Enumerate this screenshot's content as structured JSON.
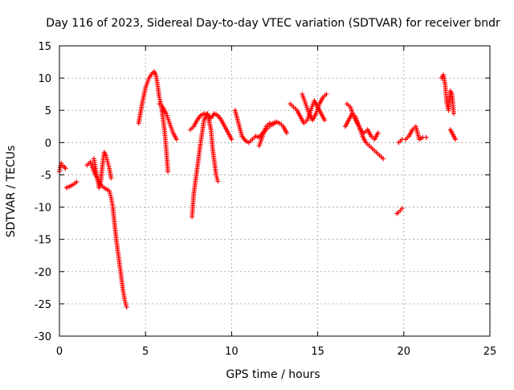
{
  "chart_data": {
    "type": "scatter",
    "title": "Day 116 of 2023, Sidereal Day-to-day VTEC variation (SDTVAR) for receiver bndr",
    "xlabel": "GPS time / hours",
    "ylabel": "SDTVAR / TECUs",
    "xlim": [
      0,
      25
    ],
    "ylim": [
      -30,
      15
    ],
    "xticks": [
      0,
      5,
      10,
      15,
      20,
      25
    ],
    "yticks": [
      15,
      10,
      5,
      0,
      -5,
      -10,
      -15,
      -20,
      -25,
      -30
    ],
    "grid": true,
    "marker": "+",
    "color": "#ff0000",
    "series": [
      {
        "name": "seg1",
        "x": [
          0.0,
          0.1,
          0.2,
          0.3,
          0.35
        ],
        "y": [
          -4.5,
          -3.2,
          -3.6,
          -3.8,
          -4.0
        ]
      },
      {
        "name": "seg2",
        "x": [
          0.4,
          0.6,
          0.8,
          1.0
        ],
        "y": [
          -7.0,
          -6.8,
          -6.5,
          -6.1
        ]
      },
      {
        "name": "seg3",
        "x": [
          1.6,
          1.8,
          2.0,
          2.2,
          2.4,
          2.5,
          2.6,
          2.7,
          2.8,
          2.9,
          3.0,
          3.1,
          3.2,
          3.3,
          3.4,
          3.5,
          3.6,
          3.7,
          3.8,
          3.9
        ],
        "y": [
          -3.5,
          -3.0,
          -4.5,
          -5.5,
          -6.5,
          -6.8,
          -7.0,
          -7.2,
          -7.3,
          -7.5,
          -8.5,
          -10.0,
          -12.5,
          -15.0,
          -17.0,
          -19.0,
          -21.0,
          -23.0,
          -24.5,
          -25.5
        ]
      },
      {
        "name": "seg4",
        "x": [
          2.0,
          2.1,
          2.2,
          2.3,
          2.4,
          2.5,
          2.6,
          2.7,
          2.8,
          2.9,
          3.0
        ],
        "y": [
          -2.5,
          -4.0,
          -5.5,
          -7.0,
          -6.0,
          -3.5,
          -1.5,
          -2.0,
          -3.0,
          -4.0,
          -5.5
        ]
      },
      {
        "name": "seg5",
        "x": [
          4.6,
          4.8,
          5.0,
          5.2,
          5.4,
          5.5,
          5.6,
          5.7,
          5.8,
          5.9,
          6.0,
          6.1,
          6.2,
          6.3
        ],
        "y": [
          3.0,
          6.0,
          8.5,
          10.0,
          10.8,
          11.0,
          10.5,
          9.0,
          7.0,
          6.0,
          4.0,
          2.0,
          -1.0,
          -4.5
        ]
      },
      {
        "name": "seg6",
        "x": [
          5.8,
          6.0,
          6.2,
          6.4,
          6.6,
          6.8
        ],
        "y": [
          6.0,
          5.5,
          4.5,
          3.0,
          1.5,
          0.5
        ]
      },
      {
        "name": "seg7",
        "x": [
          7.7,
          7.8,
          7.9,
          8.0,
          8.2,
          8.4,
          8.6,
          8.8,
          8.9,
          9.0,
          9.1,
          9.2
        ],
        "y": [
          -11.5,
          -8.0,
          -6.0,
          -4.0,
          0.0,
          3.5,
          4.5,
          2.0,
          -1.0,
          -3.0,
          -5.0,
          -6.0
        ]
      },
      {
        "name": "seg8",
        "x": [
          7.6,
          7.8,
          8.0,
          8.2,
          8.4,
          8.6,
          8.8,
          9.0,
          9.2,
          9.4,
          9.6,
          9.8,
          10.0
        ],
        "y": [
          2.0,
          2.5,
          3.5,
          4.2,
          4.5,
          4.3,
          3.8,
          4.5,
          4.2,
          3.5,
          2.5,
          1.5,
          0.5
        ]
      },
      {
        "name": "seg9",
        "x": [
          10.2,
          10.4,
          10.6,
          10.8,
          11.0,
          11.2,
          11.4,
          11.6,
          11.8,
          12.0,
          12.2,
          12.4,
          12.6,
          12.8,
          13.0,
          13.2
        ],
        "y": [
          5.0,
          3.0,
          1.0,
          0.3,
          0.0,
          0.5,
          1.0,
          0.8,
          1.5,
          2.0,
          2.5,
          3.0,
          3.2,
          3.0,
          2.5,
          1.5
        ]
      },
      {
        "name": "seg10",
        "x": [
          11.6,
          11.8,
          12.0,
          12.2,
          12.4,
          12.6
        ],
        "y": [
          -0.5,
          1.0,
          2.5,
          3.0,
          2.8,
          3.2
        ]
      },
      {
        "name": "seg11",
        "x": [
          13.4,
          13.6,
          13.8,
          14.0,
          14.2,
          14.4,
          14.6,
          14.8,
          15.0,
          15.2,
          15.4
        ],
        "y": [
          6.0,
          5.5,
          5.0,
          4.0,
          3.0,
          3.5,
          5.0,
          6.5,
          5.5,
          4.5,
          3.5
        ]
      },
      {
        "name": "seg12",
        "x": [
          14.1,
          14.3,
          14.5,
          14.7,
          14.9,
          15.1,
          15.3,
          15.5
        ],
        "y": [
          7.5,
          6.0,
          4.5,
          3.5,
          4.5,
          6.0,
          7.0,
          7.5
        ]
      },
      {
        "name": "seg13",
        "x": [
          16.6,
          16.8,
          17.0,
          17.2,
          17.4,
          17.6,
          17.8,
          18.0,
          18.2,
          18.4,
          18.6,
          18.8
        ],
        "y": [
          2.5,
          3.5,
          4.5,
          4.0,
          2.5,
          1.0,
          0.0,
          -0.5,
          -1.0,
          -1.5,
          -2.0,
          -2.5
        ]
      },
      {
        "name": "seg14",
        "x": [
          16.7,
          16.9,
          17.1,
          17.3,
          17.5,
          17.7,
          17.9,
          18.1,
          18.3,
          18.5
        ],
        "y": [
          6.0,
          5.5,
          4.0,
          3.0,
          2.0,
          1.5,
          2.0,
          1.0,
          0.5,
          1.5
        ]
      },
      {
        "name": "seg15",
        "x": [
          19.6,
          19.7,
          19.8,
          19.9
        ],
        "y": [
          -11.0,
          -10.8,
          -10.5,
          -10.2
        ]
      },
      {
        "name": "seg16",
        "x": [
          19.7,
          19.9,
          20.1,
          20.3,
          20.5,
          20.7,
          20.9,
          21.1,
          21.3
        ],
        "y": [
          0.0,
          0.5,
          0.5,
          1.0,
          2.0,
          2.5,
          0.5,
          0.8,
          0.8
        ]
      },
      {
        "name": "seg17",
        "x": [
          22.2,
          22.3,
          22.4,
          22.5,
          22.6,
          22.7,
          22.8,
          22.9
        ],
        "y": [
          10.0,
          10.5,
          9.0,
          6.0,
          5.0,
          8.0,
          7.5,
          4.5
        ]
      },
      {
        "name": "seg18",
        "x": [
          22.7,
          22.8,
          22.9,
          23.0
        ],
        "y": [
          2.0,
          1.5,
          1.0,
          0.5
        ]
      }
    ]
  }
}
